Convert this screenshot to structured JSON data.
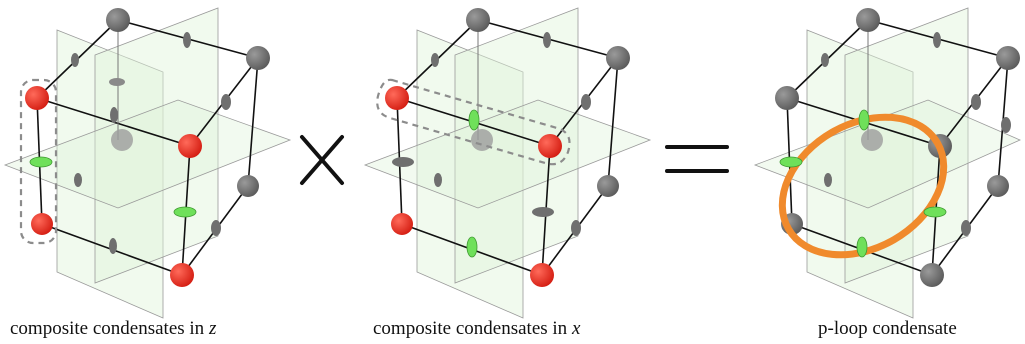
{
  "captions": [
    {
      "text": "composite condensates in ",
      "var": "z"
    },
    {
      "text": "composite condensates in ",
      "var": "x"
    },
    {
      "text": "p-loop condensate",
      "var": ""
    }
  ],
  "operators": {
    "times": "×",
    "equals": "="
  },
  "colors": {
    "site_gray": "#6f6f6f",
    "site_red": "#e8281e",
    "site_green": "#6fe05a",
    "plane_fill": "#dff3da",
    "plane_stroke": "#9a9a9a",
    "edge": "#111111",
    "loop": "#f08a2c",
    "dash": "#8c8c8c"
  }
}
